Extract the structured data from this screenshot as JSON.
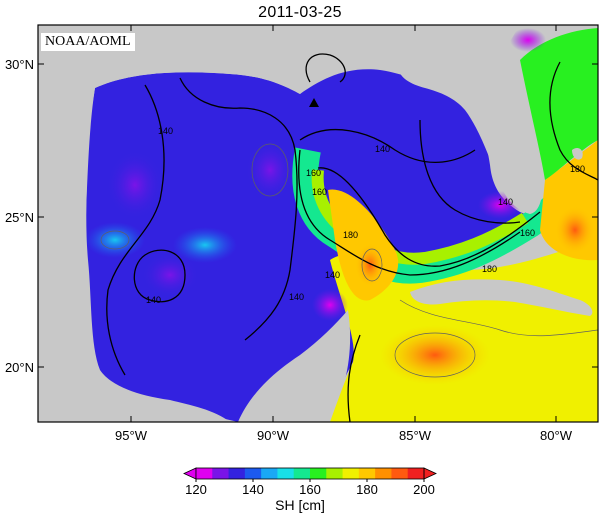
{
  "title": "2011-03-25",
  "credit": "NOAA/AOML",
  "lat_labels": [
    "30°N",
    "25°N",
    "20°N"
  ],
  "lon_labels": [
    "95°W",
    "90°W",
    "85°W",
    "80°W"
  ],
  "contour_labels": [
    "140",
    "140",
    "140",
    "140",
    "160",
    "160",
    "180",
    "140",
    "160",
    "180",
    "180",
    "140"
  ],
  "colorbar": {
    "label": "SH [cm]",
    "ticks": [
      "120",
      "140",
      "160",
      "180",
      "200"
    ],
    "colors": [
      "#e000f0",
      "#7a14e8",
      "#3322e0",
      "#1c5af0",
      "#1aa8f5",
      "#18e0e8",
      "#14e890",
      "#28f020",
      "#a8f000",
      "#f0f000",
      "#ffc800",
      "#ff9000",
      "#ff5a10",
      "#f02020"
    ]
  },
  "station_marker": "triangle-marker",
  "land_color": "#c8c8c8"
}
